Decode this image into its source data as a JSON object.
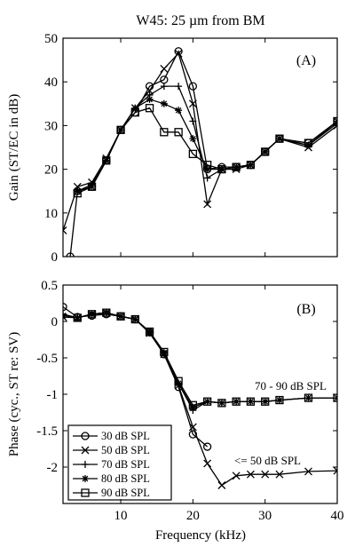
{
  "figure": {
    "title": "W45:  25 µm from BM",
    "xlabel": "Frequency (kHz)",
    "xticks": [
      10,
      20,
      30,
      40
    ]
  },
  "chart_data": [
    {
      "type": "line",
      "panel": "(A)",
      "title": "W45:  25 µm from BM",
      "xlabel": "Frequency (kHz)",
      "ylabel": "Gain (ST/EC in dB)",
      "xlim": [
        2,
        40
      ],
      "ylim": [
        0,
        50
      ],
      "xticks": [
        10,
        20,
        30,
        40
      ],
      "yticks": [
        0,
        10,
        20,
        30,
        40,
        50
      ],
      "grid": false,
      "legend": "none",
      "series": [
        {
          "name": "30 dB SPL",
          "marker": "circle",
          "x": [
            3,
            4,
            6,
            8,
            10,
            12,
            14,
            16,
            18,
            20,
            22,
            24,
            26,
            28,
            30,
            32,
            36,
            40
          ],
          "y": [
            0,
            15,
            16,
            22,
            29,
            33,
            39,
            40.5,
            47,
            39,
            20,
            20.5,
            20.5,
            21,
            24,
            27,
            26,
            31
          ]
        },
        {
          "name": "50 dB SPL",
          "marker": "x",
          "x": [
            2,
            4,
            6,
            8,
            10,
            12,
            14,
            16,
            18,
            20,
            22,
            24,
            26,
            28,
            30,
            32,
            36,
            40
          ],
          "y": [
            6,
            16,
            17,
            22.5,
            29,
            34,
            38,
            43,
            46.5,
            35,
            12,
            20,
            20,
            21,
            24,
            27,
            25,
            30
          ]
        },
        {
          "name": "70 dB SPL",
          "marker": "plus",
          "x": [
            4,
            6,
            8,
            10,
            12,
            14,
            16,
            18,
            20,
            22,
            24,
            26,
            28,
            30,
            32,
            36,
            40
          ],
          "y": [
            15,
            16.5,
            22,
            29,
            34,
            37,
            39,
            39,
            31,
            18,
            20,
            20.5,
            21,
            24,
            27,
            25.5,
            30.5
          ]
        },
        {
          "name": "80 dB SPL",
          "marker": "star",
          "x": [
            4,
            6,
            8,
            10,
            12,
            14,
            16,
            18,
            20,
            22,
            24,
            26,
            28,
            30,
            32,
            36,
            40
          ],
          "y": [
            15,
            16,
            22,
            29,
            34,
            36,
            35,
            33.5,
            27,
            20,
            20,
            20.5,
            21,
            24,
            27,
            25.5,
            31
          ]
        },
        {
          "name": "90 dB SPL",
          "marker": "square",
          "x": [
            4,
            6,
            8,
            10,
            12,
            14,
            16,
            18,
            20,
            22,
            24,
            26,
            28,
            30,
            32,
            36,
            40
          ],
          "y": [
            14.5,
            16,
            22,
            29,
            33,
            34,
            28.5,
            28.5,
            23.5,
            21,
            20,
            20.5,
            21,
            24,
            27,
            26,
            31
          ]
        }
      ]
    },
    {
      "type": "line",
      "panel": "(B)",
      "xlabel": "Frequency (kHz)",
      "ylabel": "Phase (cyc., ST re: SV)",
      "xlim": [
        2,
        40
      ],
      "ylim": [
        -2.5,
        0.5
      ],
      "xticks": [
        10,
        20,
        30,
        40
      ],
      "yticks": [
        0.5,
        0,
        -0.5,
        -1,
        -1.5,
        -2
      ],
      "grid": false,
      "legend": "bottom-left",
      "annotations": [
        "70 - 90 dB SPL",
        "<= 50 dB SPL"
      ],
      "series": [
        {
          "name": "30 dB SPL",
          "marker": "circle",
          "x": [
            2,
            4,
            6,
            8,
            10,
            12,
            14,
            16,
            18,
            20,
            22
          ],
          "y": [
            0.2,
            0.06,
            0.08,
            0.1,
            0.07,
            0.03,
            -0.15,
            -0.45,
            -0.9,
            -1.55,
            -1.72
          ]
        },
        {
          "name": "50 dB SPL",
          "marker": "x",
          "x": [
            2,
            4,
            6,
            8,
            10,
            12,
            14,
            16,
            18,
            20,
            22,
            24,
            26,
            28,
            30,
            32,
            36,
            40
          ],
          "y": [
            0.06,
            0.05,
            0.1,
            0.12,
            0.07,
            0.03,
            -0.16,
            -0.45,
            -0.88,
            -1.45,
            -1.95,
            -2.25,
            -2.12,
            -2.1,
            -2.1,
            -2.1,
            -2.06,
            -2.05
          ]
        },
        {
          "name": "70 dB SPL",
          "marker": "plus",
          "x": [
            2,
            4,
            6,
            8,
            10,
            12,
            14,
            16,
            18,
            20,
            22,
            24,
            26,
            28,
            30,
            32,
            36,
            40
          ],
          "y": [
            0.1,
            0.05,
            0.1,
            0.12,
            0.07,
            0.03,
            -0.15,
            -0.44,
            -0.85,
            -1.22,
            -1.1,
            -1.12,
            -1.1,
            -1.1,
            -1.1,
            -1.08,
            -1.05,
            -1.05
          ]
        },
        {
          "name": "80 dB SPL",
          "marker": "star",
          "x": [
            2,
            4,
            6,
            8,
            10,
            12,
            14,
            16,
            18,
            20,
            22,
            24,
            26,
            28,
            30,
            32,
            36,
            40
          ],
          "y": [
            0.08,
            0.05,
            0.1,
            0.12,
            0.07,
            0.03,
            -0.14,
            -0.43,
            -0.85,
            -1.18,
            -1.1,
            -1.12,
            -1.1,
            -1.1,
            -1.1,
            -1.08,
            -1.05,
            -1.05
          ]
        },
        {
          "name": "90 dB SPL",
          "marker": "square",
          "x": [
            4,
            6,
            8,
            10,
            12,
            14,
            16,
            18,
            20,
            22,
            24,
            26,
            28,
            30,
            32,
            36,
            40
          ],
          "y": [
            0.05,
            0.1,
            0.12,
            0.07,
            0.03,
            -0.14,
            -0.42,
            -0.82,
            -1.15,
            -1.1,
            -1.12,
            -1.1,
            -1.1,
            -1.1,
            -1.08,
            -1.05,
            -1.05
          ]
        }
      ]
    }
  ]
}
